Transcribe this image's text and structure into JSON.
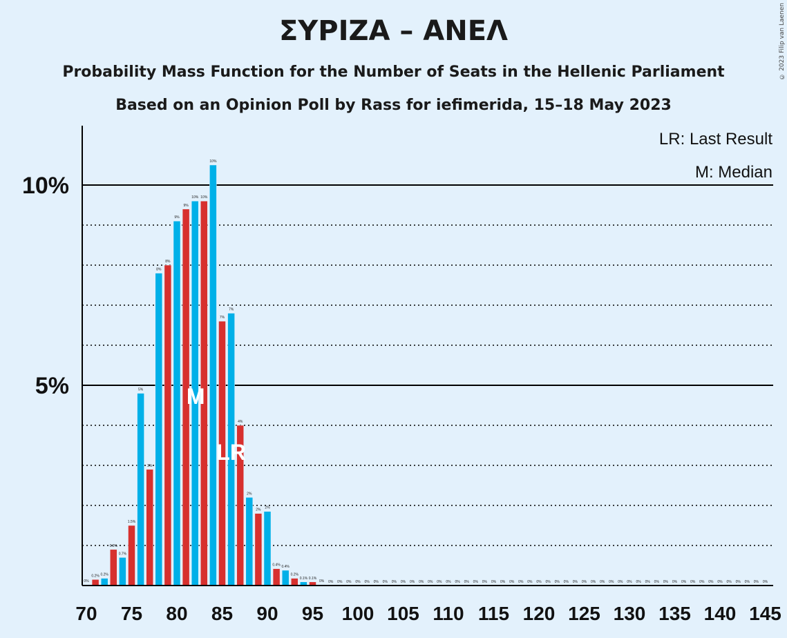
{
  "title": "ΣΥΡΙΖΑ – ΑΝΕΛ",
  "subtitle1": "Probability Mass Function for the Number of Seats in the Hellenic Parliament",
  "subtitle2": "Based on an Opinion Poll by Rass for iefimerida, 15–18 May 2023",
  "copyright": "© 2023 Filip van Laenen",
  "legend": {
    "last_result": "LR: Last Result",
    "median": "M: Median"
  },
  "colors": {
    "background": "#e3f1fc",
    "bar_even": "#00b0e8",
    "bar_odd": "#d7302e",
    "gridline": "#000000"
  },
  "chart_data": {
    "type": "bar",
    "xlabel": "",
    "ylabel": "",
    "ylim": [
      0,
      11.4
    ],
    "x_ticks": [
      70,
      75,
      80,
      85,
      90,
      95,
      100,
      105,
      110,
      115,
      120,
      125,
      130,
      135,
      140,
      145
    ],
    "y_ticks": [
      {
        "value": 5,
        "label": "5%"
      },
      {
        "value": 10,
        "label": "10%"
      }
    ],
    "dotted_gridlines": [
      1,
      2,
      3,
      4,
      6,
      7,
      8,
      9
    ],
    "median_seat": 82,
    "last_result_seat": 86,
    "median_marker": "M",
    "last_result_marker": "LR",
    "seats": [
      70,
      71,
      72,
      73,
      74,
      75,
      76,
      77,
      78,
      79,
      80,
      81,
      82,
      83,
      84,
      85,
      86,
      87,
      88,
      89,
      90,
      91,
      92,
      93,
      94,
      95,
      96,
      97,
      98,
      99,
      100,
      101,
      102,
      103,
      104,
      105,
      106,
      107,
      108,
      109,
      110,
      111,
      112,
      113,
      114,
      115,
      116,
      117,
      118,
      119,
      120,
      121,
      122,
      123,
      124,
      125,
      126,
      127,
      128,
      129,
      130,
      131,
      132,
      133,
      134,
      135,
      136,
      137,
      138,
      139,
      140,
      141,
      142,
      143,
      144,
      145
    ],
    "values": [
      0.02,
      0.15,
      0.18,
      0.9,
      0.7,
      1.5,
      4.8,
      2.9,
      7.8,
      8.0,
      9.1,
      9.4,
      9.6,
      9.6,
      10.5,
      6.6,
      6.8,
      4.0,
      2.2,
      1.8,
      1.85,
      0.42,
      0.38,
      0.18,
      0.09,
      0.09,
      0.02,
      0,
      0,
      0,
      0,
      0,
      0,
      0,
      0,
      0,
      0,
      0,
      0,
      0,
      0,
      0,
      0,
      0,
      0,
      0,
      0,
      0,
      0,
      0,
      0,
      0,
      0,
      0,
      0,
      0,
      0,
      0,
      0,
      0,
      0,
      0,
      0,
      0,
      0,
      0,
      0,
      0,
      0,
      0,
      0,
      0,
      0,
      0,
      0,
      0
    ],
    "labels": [
      "0%",
      "0.2%",
      "0.2%",
      "0.9%",
      "0.7%",
      "1.5%",
      "5%",
      "3%",
      "8%",
      "8%",
      "9%",
      "9%",
      "10%",
      "10%",
      "10%",
      "7%",
      "7%",
      "4%",
      "2%",
      "2%",
      "2%",
      "0.4%",
      "0.4%",
      "0.2%",
      "0.1%",
      "0.1%",
      "0%",
      "0%",
      "0%",
      "0%",
      "0%",
      "0%",
      "0%",
      "0%",
      "0%",
      "0%",
      "0%",
      "0%",
      "0%",
      "0%",
      "0%",
      "0%",
      "0%",
      "0%",
      "0%",
      "0%",
      "0%",
      "0%",
      "0%",
      "0%",
      "0%",
      "0%",
      "0%",
      "0%",
      "0%",
      "0%",
      "0%",
      "0%",
      "0%",
      "0%",
      "0%",
      "0%",
      "0%",
      "0%",
      "0%",
      "0%",
      "0%",
      "0%",
      "0%",
      "0%",
      "0%",
      "0%",
      "0%",
      "0%",
      "0%",
      "0%"
    ]
  }
}
